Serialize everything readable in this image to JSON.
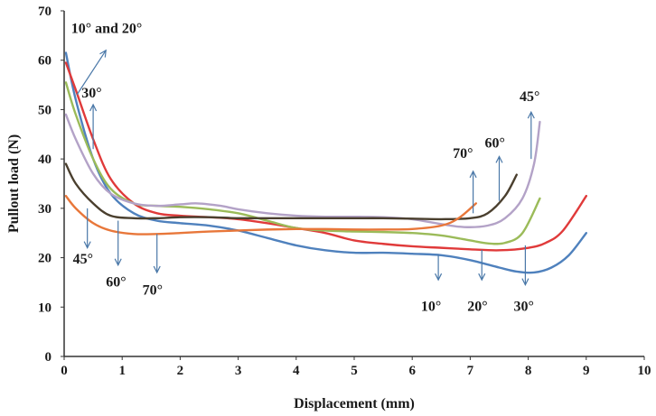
{
  "chart_data": {
    "type": "line",
    "title": "",
    "xlabel": "Displacement (mm)",
    "ylabel": "Pullout load (N)",
    "xlim": [
      0,
      10
    ],
    "ylim": [
      0,
      70
    ],
    "x_ticks": [
      "0",
      "1",
      "2",
      "3",
      "4",
      "5",
      "6",
      "7",
      "8",
      "9",
      "10"
    ],
    "y_ticks": [
      "0",
      "10",
      "20",
      "30",
      "40",
      "50",
      "60",
      "70"
    ],
    "grid": false,
    "legend": "none",
    "series": [
      {
        "color": "#4f81bd",
        "points": [
          [
            0.03,
            61.5
          ],
          [
            0.2,
            52
          ],
          [
            0.5,
            40
          ],
          [
            0.8,
            33
          ],
          [
            1.2,
            29
          ],
          [
            1.6,
            27.5
          ],
          [
            2,
            27
          ],
          [
            2.5,
            26.5
          ],
          [
            3,
            25.5
          ],
          [
            3.5,
            24
          ],
          [
            4,
            22.5
          ],
          [
            4.5,
            21.5
          ],
          [
            5,
            21
          ],
          [
            5.5,
            21
          ],
          [
            6,
            20.8
          ],
          [
            6.5,
            20.5
          ],
          [
            7,
            19.5
          ],
          [
            7.5,
            18
          ],
          [
            7.8,
            17.2
          ],
          [
            8.1,
            17
          ],
          [
            8.4,
            18
          ],
          [
            8.7,
            20.5
          ],
          [
            9,
            25
          ]
        ]
      },
      {
        "color": "#e03a3a",
        "points": [
          [
            0.03,
            59.5
          ],
          [
            0.2,
            54
          ],
          [
            0.5,
            44
          ],
          [
            0.8,
            36
          ],
          [
            1.2,
            31
          ],
          [
            1.6,
            29
          ],
          [
            2,
            28.5
          ],
          [
            2.5,
            28.2
          ],
          [
            3,
            27.8
          ],
          [
            3.5,
            27
          ],
          [
            4,
            26
          ],
          [
            4.5,
            25
          ],
          [
            5,
            23.5
          ],
          [
            5.5,
            22.8
          ],
          [
            6,
            22.3
          ],
          [
            6.5,
            22
          ],
          [
            7,
            21.7
          ],
          [
            7.5,
            21.5
          ],
          [
            8,
            22
          ],
          [
            8.3,
            23
          ],
          [
            8.6,
            25.5
          ],
          [
            9,
            32.5
          ]
        ]
      },
      {
        "color": "#9bbb59",
        "points": [
          [
            0.03,
            55.5
          ],
          [
            0.2,
            49
          ],
          [
            0.5,
            40
          ],
          [
            0.8,
            34
          ],
          [
            1.2,
            31
          ],
          [
            1.6,
            30.5
          ],
          [
            2,
            30.3
          ],
          [
            2.5,
            29.8
          ],
          [
            3,
            29
          ],
          [
            3.5,
            27.5
          ],
          [
            4,
            26
          ],
          [
            4.5,
            25.5
          ],
          [
            5,
            25.3
          ],
          [
            5.5,
            25.2
          ],
          [
            6,
            25
          ],
          [
            6.5,
            24.5
          ],
          [
            7,
            23.5
          ],
          [
            7.3,
            22.9
          ],
          [
            7.6,
            23
          ],
          [
            7.9,
            25
          ],
          [
            8.2,
            32
          ]
        ]
      },
      {
        "color": "#b3a2c7",
        "points": [
          [
            0.03,
            49
          ],
          [
            0.2,
            44
          ],
          [
            0.5,
            37
          ],
          [
            0.8,
            33
          ],
          [
            1.2,
            31
          ],
          [
            1.6,
            30.5
          ],
          [
            2,
            30.8
          ],
          [
            2.3,
            31
          ],
          [
            2.7,
            30.5
          ],
          [
            3,
            29.8
          ],
          [
            3.5,
            29
          ],
          [
            4,
            28.5
          ],
          [
            4.5,
            28.3
          ],
          [
            5,
            28.3
          ],
          [
            5.5,
            28.2
          ],
          [
            6,
            27.8
          ],
          [
            6.5,
            26.8
          ],
          [
            6.9,
            26.2
          ],
          [
            7.3,
            26.5
          ],
          [
            7.6,
            28
          ],
          [
            7.9,
            32
          ],
          [
            8.1,
            39
          ],
          [
            8.2,
            47.5
          ]
        ]
      },
      {
        "color": "#4a3f2e",
        "points": [
          [
            0.03,
            39
          ],
          [
            0.2,
            35
          ],
          [
            0.5,
            31
          ],
          [
            0.8,
            28.5
          ],
          [
            1.2,
            28
          ],
          [
            1.6,
            28
          ],
          [
            2,
            28.2
          ],
          [
            2.5,
            28.2
          ],
          [
            3,
            28
          ],
          [
            3.5,
            28
          ],
          [
            4,
            28
          ],
          [
            4.5,
            28
          ],
          [
            5,
            28
          ],
          [
            5.5,
            28
          ],
          [
            6,
            27.9
          ],
          [
            6.5,
            27.8
          ],
          [
            7,
            28
          ],
          [
            7.3,
            29
          ],
          [
            7.6,
            32.5
          ],
          [
            7.8,
            36.8
          ]
        ]
      },
      {
        "color": "#e8773a",
        "points": [
          [
            0.03,
            32.5
          ],
          [
            0.2,
            30
          ],
          [
            0.5,
            27
          ],
          [
            0.8,
            25.5
          ],
          [
            1.2,
            24.8
          ],
          [
            1.6,
            24.8
          ],
          [
            2,
            25
          ],
          [
            2.5,
            25.3
          ],
          [
            3,
            25.5
          ],
          [
            3.5,
            25.7
          ],
          [
            4,
            25.8
          ],
          [
            4.5,
            25.8
          ],
          [
            5,
            25.7
          ],
          [
            5.5,
            25.7
          ],
          [
            6,
            25.8
          ],
          [
            6.5,
            26.5
          ],
          [
            6.8,
            28
          ],
          [
            7.1,
            31
          ]
        ]
      }
    ],
    "annotations": [
      {
        "text": "10°  and 20°",
        "tx": 0.12,
        "ty": 65.5,
        "x1": 0.22,
        "y1": 53,
        "x2": 0.72,
        "y2": 62
      },
      {
        "text": "30°",
        "tx": 0.3,
        "ty": 52.5,
        "x1": 0.5,
        "y1": 42,
        "x2": 0.5,
        "y2": 51
      },
      {
        "text": "45°",
        "tx": 0.15,
        "ty": 18.8,
        "x1": 0.4,
        "y1": 30,
        "x2": 0.4,
        "y2": 22
      },
      {
        "text": "60°",
        "tx": 0.72,
        "ty": 14.2,
        "x1": 0.93,
        "y1": 27.5,
        "x2": 0.93,
        "y2": 18.5
      },
      {
        "text": "70°",
        "tx": 1.35,
        "ty": 12.5,
        "x1": 1.6,
        "y1": 24.8,
        "x2": 1.6,
        "y2": 17
      },
      {
        "text": "10°",
        "tx": 6.15,
        "ty": 9.2,
        "x1": 6.45,
        "y1": 20.7,
        "x2": 6.45,
        "y2": 15.5
      },
      {
        "text": "20°",
        "tx": 6.95,
        "ty": 9.2,
        "x1": 7.2,
        "y1": 21.6,
        "x2": 7.2,
        "y2": 15.5
      },
      {
        "text": "30°",
        "tx": 7.75,
        "ty": 9.2,
        "x1": 7.95,
        "y1": 22.5,
        "x2": 7.95,
        "y2": 14.5
      },
      {
        "text": "70°",
        "tx": 6.7,
        "ty": 40.2,
        "x1": 7.05,
        "y1": 29,
        "x2": 7.05,
        "y2": 37.5
      },
      {
        "text": "60°",
        "tx": 7.25,
        "ty": 42.3,
        "x1": 7.5,
        "y1": 31.5,
        "x2": 7.5,
        "y2": 40.5
      },
      {
        "text": "45°",
        "tx": 7.85,
        "ty": 51.7,
        "x1": 8.05,
        "y1": 40,
        "x2": 8.05,
        "y2": 49.5
      }
    ]
  }
}
